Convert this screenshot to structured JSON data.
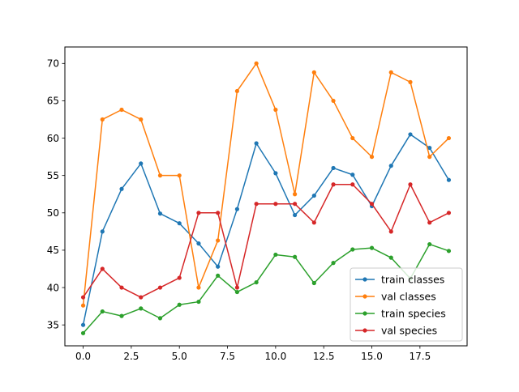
{
  "chart_data": {
    "type": "line",
    "title": "",
    "xlabel": "",
    "ylabel": "",
    "xlim": [
      -0.95,
      19.95
    ],
    "ylim": [
      32.2,
      72.2
    ],
    "xticks": [
      0.0,
      2.5,
      5.0,
      7.5,
      10.0,
      12.5,
      15.0,
      17.5
    ],
    "xtick_labels": [
      "0.0",
      "2.5",
      "5.0",
      "7.5",
      "10.0",
      "12.5",
      "15.0",
      "17.5"
    ],
    "yticks": [
      35,
      40,
      45,
      50,
      55,
      60,
      65,
      70
    ],
    "ytick_labels": [
      "35",
      "40",
      "45",
      "50",
      "55",
      "60",
      "65",
      "70"
    ],
    "grid": false,
    "legend_position": "lower right",
    "x": [
      0,
      1,
      2,
      3,
      4,
      5,
      6,
      7,
      8,
      9,
      10,
      11,
      12,
      13,
      14,
      15,
      16,
      17,
      18,
      19
    ],
    "series": [
      {
        "name": "train classes",
        "color": "#1f77b4",
        "values": [
          35.0,
          47.5,
          53.2,
          56.6,
          49.9,
          48.6,
          45.9,
          42.8,
          50.5,
          59.3,
          55.3,
          49.7,
          52.3,
          56.0,
          55.1,
          50.9,
          56.3,
          60.5,
          58.7,
          54.4
        ]
      },
      {
        "name": "val classes",
        "color": "#ff7f0e",
        "values": [
          37.6,
          62.5,
          63.8,
          62.5,
          55.0,
          55.0,
          40.0,
          46.3,
          66.3,
          70.0,
          63.8,
          52.5,
          68.8,
          65.0,
          60.0,
          57.5,
          68.8,
          67.5,
          57.5,
          60.0
        ]
      },
      {
        "name": "train species",
        "color": "#2ca02c",
        "values": [
          33.9,
          36.8,
          36.2,
          37.2,
          35.9,
          37.7,
          38.1,
          41.6,
          39.4,
          40.7,
          44.4,
          44.1,
          40.6,
          43.3,
          45.1,
          45.3,
          44.0,
          41.2,
          45.8,
          44.9
        ]
      },
      {
        "name": "val species",
        "color": "#d62728",
        "values": [
          38.7,
          42.5,
          40.0,
          38.7,
          40.0,
          41.3,
          50.0,
          50.0,
          40.0,
          51.2,
          51.2,
          51.2,
          48.7,
          53.8,
          53.8,
          51.2,
          47.5,
          53.8,
          48.7,
          50.0
        ]
      }
    ]
  }
}
